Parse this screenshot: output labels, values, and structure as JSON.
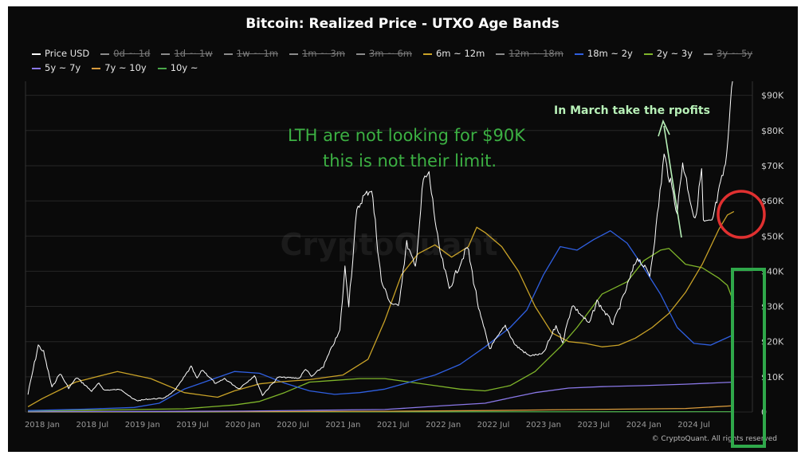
{
  "chart_data": {
    "type": "line",
    "title": "Bitcoin: Realized Price - UTXO Age Bands",
    "watermark": "CryptoQuant",
    "copyright": "© CryptoQuant. All rights reserved",
    "y_scale": "linear",
    "ylim": [
      0,
      90000
    ],
    "y_ticks": [
      0,
      10000,
      20000,
      30000,
      40000,
      50000,
      60000,
      70000,
      80000,
      90000
    ],
    "y_tick_labels": [
      "0",
      "$10K",
      "$20K",
      "$30K",
      "$40K",
      "$50K",
      "$60K",
      "$70K",
      "$80K",
      "$90K"
    ],
    "x_range": [
      "2017-11",
      "2025-01"
    ],
    "x_tick_labels": [
      "2018 Jan",
      "2018 Jul",
      "2019 Jan",
      "2019 Jul",
      "2020 Jan",
      "2020 Jul",
      "2021 Jan",
      "2021 Jul",
      "2022 Jan",
      "2022 Jul",
      "2023 Jan",
      "2023 Jul",
      "2024 Jan",
      "2024 Jul"
    ],
    "x_tick_dates": [
      "2018-01",
      "2018-07",
      "2019-01",
      "2019-07",
      "2020-01",
      "2020-07",
      "2021-01",
      "2021-07",
      "2022-01",
      "2022-07",
      "2023-01",
      "2023-07",
      "2024-01",
      "2024-07"
    ],
    "grid": "horizontal",
    "legend_position": "top",
    "legend": [
      {
        "label": "Price USD",
        "color": "#ffffff",
        "active": true
      },
      {
        "label": "0d ~ 1d",
        "color": "#8c8c8c",
        "active": false
      },
      {
        "label": "1d ~ 1w",
        "color": "#8c8c8c",
        "active": false
      },
      {
        "label": "1w ~ 1m",
        "color": "#8c8c8c",
        "active": false
      },
      {
        "label": "1m ~ 3m",
        "color": "#8c8c8c",
        "active": false
      },
      {
        "label": "3m ~ 6m",
        "color": "#8c8c8c",
        "active": false
      },
      {
        "label": "6m ~ 12m",
        "color": "#c9a227",
        "active": true
      },
      {
        "label": "12m ~ 18m",
        "color": "#8c8c8c",
        "active": false
      },
      {
        "label": "18m ~ 2y",
        "color": "#2f5fe0",
        "active": true
      },
      {
        "label": "2y ~ 3y",
        "color": "#7fb52a",
        "active": true
      },
      {
        "label": "3y ~ 5y",
        "color": "#8c8c8c",
        "active": false
      },
      {
        "label": "5y ~ 7y",
        "color": "#8a78e8",
        "active": true
      },
      {
        "label": "7y ~ 10y",
        "color": "#d89a3c",
        "active": true
      },
      {
        "label": "10y ~",
        "color": "#4aa84a",
        "active": true
      }
    ],
    "series": [
      {
        "name": "Price USD",
        "color": "#ffffff",
        "points": [
          [
            "2017-11-10",
            5000
          ],
          [
            "2017-12-17",
            19000
          ],
          [
            "2018-01-06",
            17000
          ],
          [
            "2018-02-06",
            7000
          ],
          [
            "2018-03-05",
            11000
          ],
          [
            "2018-04-06",
            6800
          ],
          [
            "2018-05-05",
            9800
          ],
          [
            "2018-06-29",
            5900
          ],
          [
            "2018-07-25",
            8200
          ],
          [
            "2018-08-14",
            6200
          ],
          [
            "2018-10-15",
            6400
          ],
          [
            "2018-11-25",
            3800
          ],
          [
            "2018-12-15",
            3200
          ],
          [
            "2019-01-15",
            3600
          ],
          [
            "2019-03-15",
            3900
          ],
          [
            "2019-04-15",
            5200
          ],
          [
            "2019-05-15",
            8000
          ],
          [
            "2019-06-26",
            12900
          ],
          [
            "2019-07-17",
            9500
          ],
          [
            "2019-08-06",
            12000
          ],
          [
            "2019-09-25",
            8000
          ],
          [
            "2019-10-26",
            9500
          ],
          [
            "2019-12-17",
            6600
          ],
          [
            "2020-02-13",
            10300
          ],
          [
            "2020-03-12",
            4800
          ],
          [
            "2020-05-08",
            9900
          ],
          [
            "2020-07-25",
            9600
          ],
          [
            "2020-08-17",
            12300
          ],
          [
            "2020-09-08",
            10000
          ],
          [
            "2020-10-21",
            13000
          ],
          [
            "2020-11-25",
            19000
          ],
          [
            "2020-12-20",
            23000
          ],
          [
            "2021-01-08",
            41000
          ],
          [
            "2021-01-22",
            31000
          ],
          [
            "2021-02-21",
            57000
          ],
          [
            "2021-03-13",
            61000
          ],
          [
            "2021-04-14",
            63500
          ],
          [
            "2021-05-19",
            37000
          ],
          [
            "2021-06-22",
            31000
          ],
          [
            "2021-07-20",
            30000
          ],
          [
            "2021-08-20",
            48000
          ],
          [
            "2021-09-21",
            41000
          ],
          [
            "2021-10-20",
            66000
          ],
          [
            "2021-11-10",
            67500
          ],
          [
            "2021-12-15",
            47000
          ],
          [
            "2022-01-23",
            35000
          ],
          [
            "2022-03-28",
            47000
          ],
          [
            "2022-05-12",
            28000
          ],
          [
            "2022-06-18",
            18000
          ],
          [
            "2022-08-14",
            24500
          ],
          [
            "2022-09-20",
            19000
          ],
          [
            "2022-11-09",
            16000
          ],
          [
            "2022-12-30",
            16500
          ],
          [
            "2023-02-16",
            24500
          ],
          [
            "2023-03-10",
            20000
          ],
          [
            "2023-04-14",
            30500
          ],
          [
            "2023-06-15",
            25000
          ],
          [
            "2023-07-13",
            31500
          ],
          [
            "2023-09-11",
            25000
          ],
          [
            "2023-10-24",
            34000
          ],
          [
            "2023-12-08",
            44000
          ],
          [
            "2024-01-23",
            39000
          ],
          [
            "2024-02-15",
            52000
          ],
          [
            "2024-03-14",
            73000
          ],
          [
            "2024-05-01",
            57000
          ],
          [
            "2024-05-21",
            71000
          ],
          [
            "2024-07-05",
            54000
          ],
          [
            "2024-07-29",
            69000
          ],
          [
            "2024-08-05",
            54000
          ],
          [
            "2024-09-06",
            54000
          ],
          [
            "2024-10-29",
            72000
          ],
          [
            "2024-11-13",
            90000
          ],
          [
            "2024-11-20",
            94000
          ]
        ]
      },
      {
        "name": "6m ~ 12m",
        "color": "#c9a227",
        "points": [
          [
            "2017-11-10",
            1500
          ],
          [
            "2018-01-01",
            3800
          ],
          [
            "2018-05-01",
            8500
          ],
          [
            "2018-10-01",
            11500
          ],
          [
            "2019-02-01",
            9500
          ],
          [
            "2019-06-01",
            5500
          ],
          [
            "2019-10-01",
            4200
          ],
          [
            "2019-12-01",
            6000
          ],
          [
            "2020-03-01",
            8000
          ],
          [
            "2020-05-01",
            8500
          ],
          [
            "2020-09-01",
            9200
          ],
          [
            "2021-01-01",
            10500
          ],
          [
            "2021-04-01",
            15000
          ],
          [
            "2021-06-01",
            26000
          ],
          [
            "2021-08-01",
            39000
          ],
          [
            "2021-10-01",
            45000
          ],
          [
            "2021-12-01",
            47500
          ],
          [
            "2022-02-01",
            44000
          ],
          [
            "2022-04-01",
            47000
          ],
          [
            "2022-05-01",
            52500
          ],
          [
            "2022-06-01",
            51000
          ],
          [
            "2022-08-01",
            47000
          ],
          [
            "2022-10-01",
            40000
          ],
          [
            "2022-12-01",
            30000
          ],
          [
            "2023-02-01",
            22500
          ],
          [
            "2023-04-01",
            20000
          ],
          [
            "2023-06-01",
            19500
          ],
          [
            "2023-08-01",
            18500
          ],
          [
            "2023-10-01",
            19000
          ],
          [
            "2023-12-01",
            21000
          ],
          [
            "2024-02-01",
            24000
          ],
          [
            "2024-04-01",
            28000
          ],
          [
            "2024-06-01",
            34000
          ],
          [
            "2024-08-01",
            42000
          ],
          [
            "2024-10-01",
            52000
          ],
          [
            "2024-11-01",
            56000
          ],
          [
            "2024-11-25",
            57000
          ]
        ]
      },
      {
        "name": "18m ~ 2y",
        "color": "#2f5fe0",
        "points": [
          [
            "2017-11-10",
            400
          ],
          [
            "2018-06-01",
            800
          ],
          [
            "2018-12-01",
            1300
          ],
          [
            "2019-03-01",
            2500
          ],
          [
            "2019-06-01",
            6500
          ],
          [
            "2019-09-01",
            9000
          ],
          [
            "2019-12-01",
            11500
          ],
          [
            "2020-03-01",
            11000
          ],
          [
            "2020-06-01",
            8200
          ],
          [
            "2020-09-01",
            6000
          ],
          [
            "2020-12-01",
            5000
          ],
          [
            "2021-03-01",
            5500
          ],
          [
            "2021-06-01",
            6500
          ],
          [
            "2021-09-01",
            8500
          ],
          [
            "2021-12-01",
            10500
          ],
          [
            "2022-03-01",
            13500
          ],
          [
            "2022-06-01",
            18500
          ],
          [
            "2022-09-01",
            24000
          ],
          [
            "2022-11-01",
            29000
          ],
          [
            "2023-01-01",
            39000
          ],
          [
            "2023-03-01",
            47000
          ],
          [
            "2023-05-01",
            46000
          ],
          [
            "2023-07-01",
            49000
          ],
          [
            "2023-09-01",
            51500
          ],
          [
            "2023-11-01",
            48000
          ],
          [
            "2024-01-01",
            41000
          ],
          [
            "2024-03-01",
            33500
          ],
          [
            "2024-05-01",
            24000
          ],
          [
            "2024-07-01",
            19500
          ],
          [
            "2024-09-01",
            19000
          ],
          [
            "2024-11-25",
            22000
          ]
        ]
      },
      {
        "name": "2y ~ 3y",
        "color": "#7fb52a",
        "points": [
          [
            "2017-11-10",
            300
          ],
          [
            "2018-06-01",
            500
          ],
          [
            "2018-12-01",
            700
          ],
          [
            "2019-06-01",
            900
          ],
          [
            "2019-12-01",
            2000
          ],
          [
            "2020-03-01",
            3000
          ],
          [
            "2020-06-01",
            5500
          ],
          [
            "2020-09-01",
            8500
          ],
          [
            "2020-12-01",
            9000
          ],
          [
            "2021-03-01",
            9500
          ],
          [
            "2021-06-01",
            9500
          ],
          [
            "2021-09-01",
            8500
          ],
          [
            "2021-12-01",
            7500
          ],
          [
            "2022-03-01",
            6500
          ],
          [
            "2022-06-01",
            6000
          ],
          [
            "2022-09-01",
            7500
          ],
          [
            "2022-12-01",
            11500
          ],
          [
            "2023-03-01",
            18500
          ],
          [
            "2023-05-01",
            24000
          ],
          [
            "2023-08-01",
            33500
          ],
          [
            "2023-11-01",
            37000
          ],
          [
            "2024-01-01",
            43000
          ],
          [
            "2024-03-01",
            46000
          ],
          [
            "2024-04-01",
            46500
          ],
          [
            "2024-06-01",
            42000
          ],
          [
            "2024-08-01",
            41000
          ],
          [
            "2024-10-01",
            38000
          ],
          [
            "2024-11-01",
            36000
          ],
          [
            "2024-11-25",
            31000
          ]
        ]
      },
      {
        "name": "5y ~ 7y",
        "color": "#8a78e8",
        "points": [
          [
            "2017-11-10",
            100
          ],
          [
            "2019-01-01",
            150
          ],
          [
            "2020-01-01",
            250
          ],
          [
            "2020-10-01",
            500
          ],
          [
            "2021-06-01",
            700
          ],
          [
            "2022-01-01",
            1800
          ],
          [
            "2022-06-01",
            2500
          ],
          [
            "2022-09-01",
            4000
          ],
          [
            "2022-12-01",
            5500
          ],
          [
            "2023-04-01",
            6800
          ],
          [
            "2023-08-01",
            7200
          ],
          [
            "2024-01-01",
            7500
          ],
          [
            "2024-06-01",
            7900
          ],
          [
            "2024-11-25",
            8500
          ]
        ]
      },
      {
        "name": "7y ~ 10y",
        "color": "#d89a3c",
        "points": [
          [
            "2017-11-10",
            50
          ],
          [
            "2020-01-01",
            100
          ],
          [
            "2021-06-01",
            200
          ],
          [
            "2022-06-01",
            400
          ],
          [
            "2023-06-01",
            700
          ],
          [
            "2024-06-01",
            1000
          ],
          [
            "2024-11-25",
            1800
          ]
        ]
      },
      {
        "name": "10y ~",
        "color": "#4aa84a",
        "points": [
          [
            "2017-11-10",
            10
          ],
          [
            "2020-01-01",
            20
          ],
          [
            "2022-01-01",
            40
          ],
          [
            "2024-11-25",
            80
          ]
        ]
      }
    ],
    "annotations": [
      {
        "text": "LTH are not looking for $90K",
        "color": "#3cb043"
      },
      {
        "text": "this is not their limit.",
        "color": "#3cb043"
      },
      {
        "text": "In March take the rpofits",
        "color": "#b7f0b7"
      }
    ]
  }
}
